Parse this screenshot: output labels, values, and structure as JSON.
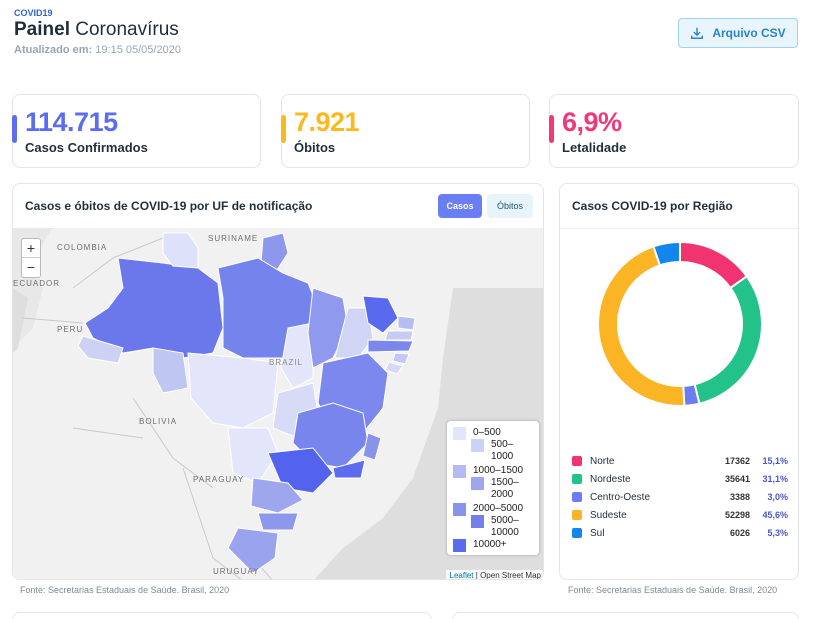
{
  "header": {
    "tag": "COVID19",
    "title_bold": "Painel",
    "title_rest": "Coronavírus",
    "updated_label": "Atualizado em:",
    "updated_value": "19:15 05/05/2020",
    "csv_button": "Arquivo CSV"
  },
  "kpis": [
    {
      "value": "114.715",
      "label": "Casos Confirmados",
      "color": "#5c6df0"
    },
    {
      "value": "7.921",
      "label": "Óbitos",
      "color": "#fbb81f"
    },
    {
      "value": "6,9%",
      "label": "Letalidade",
      "color": "#ef3a7a"
    }
  ],
  "map": {
    "title": "Casos e óbitos de COVID-19 por UF de notificação",
    "toggle_active": "Casos",
    "toggle_inactive": "Óbitos",
    "zoom_in": "+",
    "zoom_out": "−",
    "labels": [
      "SURINAME",
      "COLOMBIA",
      "ECUADOR",
      "PERU",
      "BRAZIL",
      "BOLIVIA",
      "PARAGUAY",
      "URUGUAY"
    ],
    "legend": [
      {
        "label": "0–500",
        "color": "#e3e6fa"
      },
      {
        "label": "500–1000",
        "color": "#ccd1f6"
      },
      {
        "label": "1000–1500",
        "color": "#b4bbf2"
      },
      {
        "label": "1500–2000",
        "color": "#9ea7ee"
      },
      {
        "label": "2000–5000",
        "color": "#8893ec"
      },
      {
        "label": "5000–10000",
        "color": "#7380ec"
      },
      {
        "label": "10000+",
        "color": "#5b6bee"
      }
    ],
    "attribution_leaflet": "Leaflet",
    "attribution_rest": "| Open Street Map",
    "source": "Fonte: Secretarias Estaduais de Saúde. Brasil, 2020"
  },
  "regions": {
    "title": "Casos COVID-19 por Região",
    "source": "Fonte: Secretarias Estaduais de Saúde. Brasil, 2020",
    "items": [
      {
        "name": "Norte",
        "cases": "17362",
        "pct": "15,1%",
        "value": 17362,
        "color": "#f1346f"
      },
      {
        "name": "Nordeste",
        "cases": "35641",
        "pct": "31,1%",
        "value": 35641,
        "color": "#22c288"
      },
      {
        "name": "Centro-Oeste",
        "cases": "3388",
        "pct": "3,0%",
        "value": 3388,
        "color": "#6c7df3"
      },
      {
        "name": "Sudeste",
        "cases": "52298",
        "pct": "45,6%",
        "value": 52298,
        "color": "#fbb423"
      },
      {
        "name": "Sul",
        "cases": "6026",
        "pct": "5,3%",
        "value": 6026,
        "color": "#1286ec"
      }
    ]
  }
}
